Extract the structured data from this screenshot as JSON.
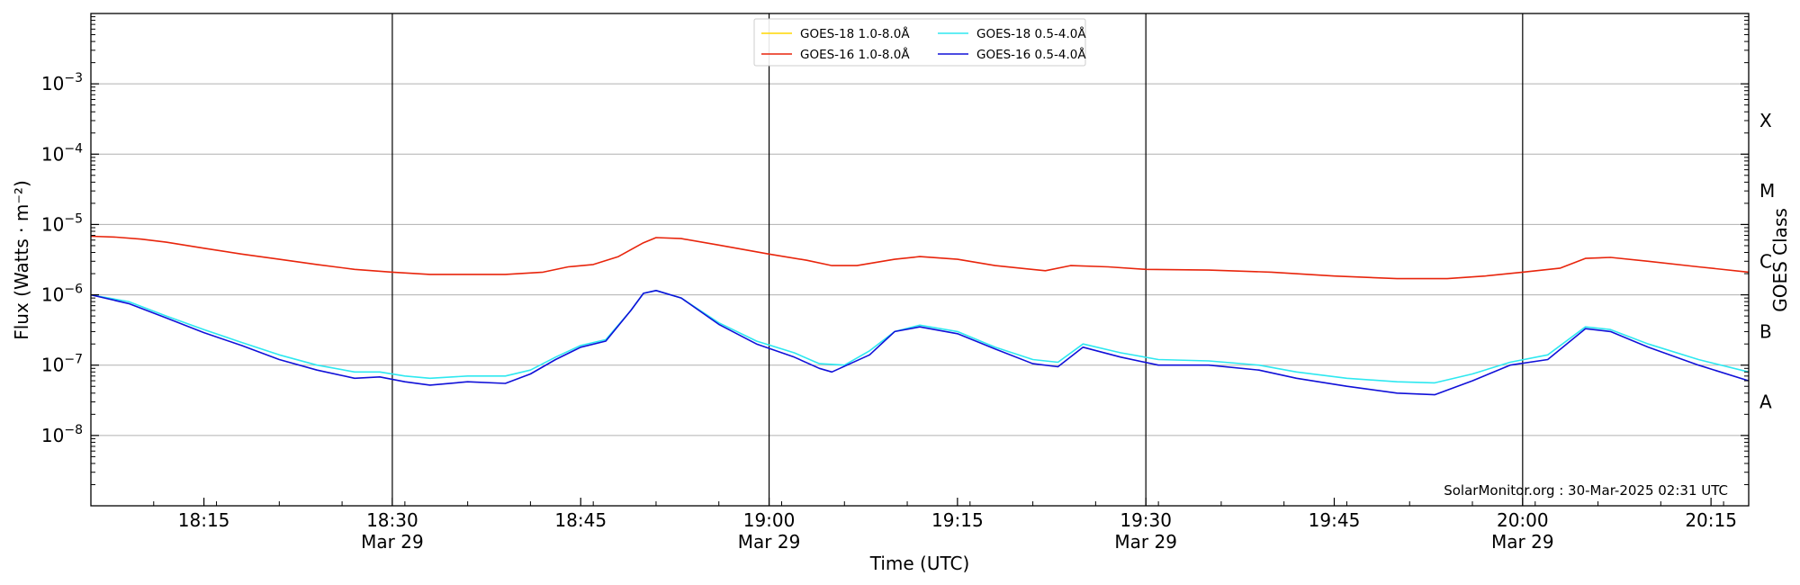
{
  "chart_data": {
    "type": "line",
    "xlabel": "Time (UTC)",
    "ylabel": "Flux (Watts · m⁻²)",
    "ylabel_right": "GOES Class",
    "watermark": "SolarMonitor.org : 30-Mar-2025 02:31 UTC",
    "y_scale": "log",
    "ylim": [
      1e-09,
      0.01
    ],
    "grid": "horizontal",
    "legend_position": "top-center",
    "x_start": "2025-03-29 18:06",
    "x_end": "2025-03-29 20:18",
    "x_ticks": [
      {
        "time": "2025-03-29 18:15",
        "label": "18:15",
        "sublabel": ""
      },
      {
        "time": "2025-03-29 18:30",
        "label": "18:30",
        "sublabel": "Mar 29"
      },
      {
        "time": "2025-03-29 18:45",
        "label": "18:45",
        "sublabel": ""
      },
      {
        "time": "2025-03-29 19:00",
        "label": "19:00",
        "sublabel": "Mar 29"
      },
      {
        "time": "2025-03-29 19:15",
        "label": "19:15",
        "sublabel": ""
      },
      {
        "time": "2025-03-29 19:30",
        "label": "19:30",
        "sublabel": "Mar 29"
      },
      {
        "time": "2025-03-29 19:45",
        "label": "19:45",
        "sublabel": ""
      },
      {
        "time": "2025-03-29 20:00",
        "label": "20:00",
        "sublabel": "Mar 29"
      },
      {
        "time": "2025-03-29 20:15",
        "label": "20:15",
        "sublabel": ""
      }
    ],
    "vlines": [
      "2025-03-29 18:30",
      "2025-03-29 19:00",
      "2025-03-29 19:30",
      "2025-03-29 20:00"
    ],
    "y_ticks": [
      {
        "value": 1e-08,
        "base": "10",
        "exp": "−8"
      },
      {
        "value": 1e-07,
        "base": "10",
        "exp": "−7"
      },
      {
        "value": 1e-06,
        "base": "10",
        "exp": "−6"
      },
      {
        "value": 1e-05,
        "base": "10",
        "exp": "−5"
      },
      {
        "value": 0.0001,
        "base": "10",
        "exp": "−4"
      },
      {
        "value": 0.001,
        "base": "10",
        "exp": "−3"
      }
    ],
    "goes_classes": [
      {
        "label": "A",
        "value": 3e-08
      },
      {
        "label": "B",
        "value": 3e-07
      },
      {
        "label": "C",
        "value": 3e-06
      },
      {
        "label": "M",
        "value": 3e-05
      },
      {
        "label": "X",
        "value": 0.0003
      }
    ],
    "series": [
      {
        "name": "GOES-18 1.0-8.0Å",
        "color": "#ffd700",
        "points": []
      },
      {
        "name": "GOES-16 1.0-8.0Å",
        "color": "#e8250c",
        "points": [
          [
            "2025-03-29 18:06",
            6.8e-06
          ],
          [
            "2025-03-29 18:08",
            6.6e-06
          ],
          [
            "2025-03-29 18:10",
            6.2e-06
          ],
          [
            "2025-03-29 18:12",
            5.6e-06
          ],
          [
            "2025-03-29 18:15",
            4.6e-06
          ],
          [
            "2025-03-29 18:18",
            3.8e-06
          ],
          [
            "2025-03-29 18:21",
            3.2e-06
          ],
          [
            "2025-03-29 18:24",
            2.7e-06
          ],
          [
            "2025-03-29 18:27",
            2.3e-06
          ],
          [
            "2025-03-29 18:30",
            2.1e-06
          ],
          [
            "2025-03-29 18:33",
            1.95e-06
          ],
          [
            "2025-03-29 18:36",
            1.95e-06
          ],
          [
            "2025-03-29 18:39",
            1.95e-06
          ],
          [
            "2025-03-29 18:42",
            2.1e-06
          ],
          [
            "2025-03-29 18:44",
            2.5e-06
          ],
          [
            "2025-03-29 18:46",
            2.7e-06
          ],
          [
            "2025-03-29 18:48",
            3.5e-06
          ],
          [
            "2025-03-29 18:50",
            5.5e-06
          ],
          [
            "2025-03-29 18:51",
            6.5e-06
          ],
          [
            "2025-03-29 18:53",
            6.3e-06
          ],
          [
            "2025-03-29 18:56",
            5.1e-06
          ],
          [
            "2025-03-29 19:00",
            3.8e-06
          ],
          [
            "2025-03-29 19:03",
            3.1e-06
          ],
          [
            "2025-03-29 19:05",
            2.6e-06
          ],
          [
            "2025-03-29 19:07",
            2.6e-06
          ],
          [
            "2025-03-29 19:10",
            3.2e-06
          ],
          [
            "2025-03-29 19:12",
            3.5e-06
          ],
          [
            "2025-03-29 19:15",
            3.2e-06
          ],
          [
            "2025-03-29 19:18",
            2.6e-06
          ],
          [
            "2025-03-29 19:22",
            2.2e-06
          ],
          [
            "2025-03-29 19:24",
            2.6e-06
          ],
          [
            "2025-03-29 19:27",
            2.5e-06
          ],
          [
            "2025-03-29 19:30",
            2.3e-06
          ],
          [
            "2025-03-29 19:35",
            2.25e-06
          ],
          [
            "2025-03-29 19:40",
            2.1e-06
          ],
          [
            "2025-03-29 19:45",
            1.85e-06
          ],
          [
            "2025-03-29 19:50",
            1.7e-06
          ],
          [
            "2025-03-29 19:54",
            1.7e-06
          ],
          [
            "2025-03-29 19:57",
            1.85e-06
          ],
          [
            "2025-03-29 20:00",
            2.1e-06
          ],
          [
            "2025-03-29 20:03",
            2.4e-06
          ],
          [
            "2025-03-29 20:05",
            3.3e-06
          ],
          [
            "2025-03-29 20:07",
            3.4e-06
          ],
          [
            "2025-03-29 20:10",
            3e-06
          ],
          [
            "2025-03-29 20:14",
            2.5e-06
          ],
          [
            "2025-03-29 20:18",
            2.1e-06
          ]
        ]
      },
      {
        "name": "GOES-18 0.5-4.0Å",
        "color": "#2ee8f0",
        "points": [
          [
            "2025-03-29 18:06",
            1e-06
          ],
          [
            "2025-03-29 18:09",
            8e-07
          ],
          [
            "2025-03-29 18:12",
            5e-07
          ],
          [
            "2025-03-29 18:15",
            3.2e-07
          ],
          [
            "2025-03-29 18:18",
            2.1e-07
          ],
          [
            "2025-03-29 18:21",
            1.4e-07
          ],
          [
            "2025-03-29 18:24",
            1e-07
          ],
          [
            "2025-03-29 18:27",
            8e-08
          ],
          [
            "2025-03-29 18:29",
            8e-08
          ],
          [
            "2025-03-29 18:31",
            7e-08
          ],
          [
            "2025-03-29 18:33",
            6.5e-08
          ],
          [
            "2025-03-29 18:36",
            7e-08
          ],
          [
            "2025-03-29 18:39",
            7e-08
          ],
          [
            "2025-03-29 18:41",
            8.5e-08
          ],
          [
            "2025-03-29 18:43",
            1.3e-07
          ],
          [
            "2025-03-29 18:45",
            1.9e-07
          ],
          [
            "2025-03-29 18:47",
            2.3e-07
          ],
          [
            "2025-03-29 18:49",
            6e-07
          ],
          [
            "2025-03-29 18:50",
            1.05e-06
          ],
          [
            "2025-03-29 18:51",
            1.15e-06
          ],
          [
            "2025-03-29 18:53",
            9e-07
          ],
          [
            "2025-03-29 18:56",
            4e-07
          ],
          [
            "2025-03-29 18:59",
            2.2e-07
          ],
          [
            "2025-03-29 19:02",
            1.5e-07
          ],
          [
            "2025-03-29 19:04",
            1.05e-07
          ],
          [
            "2025-03-29 19:06",
            1e-07
          ],
          [
            "2025-03-29 19:08",
            1.6e-07
          ],
          [
            "2025-03-29 19:10",
            3e-07
          ],
          [
            "2025-03-29 19:12",
            3.7e-07
          ],
          [
            "2025-03-29 19:15",
            3e-07
          ],
          [
            "2025-03-29 19:18",
            1.8e-07
          ],
          [
            "2025-03-29 19:21",
            1.2e-07
          ],
          [
            "2025-03-29 19:23",
            1.1e-07
          ],
          [
            "2025-03-29 19:25",
            2e-07
          ],
          [
            "2025-03-29 19:28",
            1.5e-07
          ],
          [
            "2025-03-29 19:31",
            1.2e-07
          ],
          [
            "2025-03-29 19:35",
            1.15e-07
          ],
          [
            "2025-03-29 19:39",
            1e-07
          ],
          [
            "2025-03-29 19:42",
            8e-08
          ],
          [
            "2025-03-29 19:46",
            6.5e-08
          ],
          [
            "2025-03-29 19:50",
            5.8e-08
          ],
          [
            "2025-03-29 19:53",
            5.6e-08
          ],
          [
            "2025-03-29 19:56",
            7.5e-08
          ],
          [
            "2025-03-29 19:59",
            1.1e-07
          ],
          [
            "2025-03-29 20:02",
            1.4e-07
          ],
          [
            "2025-03-29 20:05",
            3.5e-07
          ],
          [
            "2025-03-29 20:07",
            3.2e-07
          ],
          [
            "2025-03-29 20:10",
            2e-07
          ],
          [
            "2025-03-29 20:14",
            1.2e-07
          ],
          [
            "2025-03-29 20:18",
            8e-08
          ]
        ]
      },
      {
        "name": "GOES-16 0.5-4.0Å",
        "color": "#1010d8",
        "points": [
          [
            "2025-03-29 18:06",
            1e-06
          ],
          [
            "2025-03-29 18:09",
            7.5e-07
          ],
          [
            "2025-03-29 18:12",
            4.7e-07
          ],
          [
            "2025-03-29 18:15",
            2.9e-07
          ],
          [
            "2025-03-29 18:18",
            1.9e-07
          ],
          [
            "2025-03-29 18:21",
            1.2e-07
          ],
          [
            "2025-03-29 18:24",
            8.5e-08
          ],
          [
            "2025-03-29 18:27",
            6.5e-08
          ],
          [
            "2025-03-29 18:29",
            6.8e-08
          ],
          [
            "2025-03-29 18:31",
            5.8e-08
          ],
          [
            "2025-03-29 18:33",
            5.2e-08
          ],
          [
            "2025-03-29 18:36",
            5.8e-08
          ],
          [
            "2025-03-29 18:39",
            5.5e-08
          ],
          [
            "2025-03-29 18:41",
            7.5e-08
          ],
          [
            "2025-03-29 18:43",
            1.2e-07
          ],
          [
            "2025-03-29 18:45",
            1.8e-07
          ],
          [
            "2025-03-29 18:47",
            2.2e-07
          ],
          [
            "2025-03-29 18:49",
            6e-07
          ],
          [
            "2025-03-29 18:50",
            1.05e-06
          ],
          [
            "2025-03-29 18:51",
            1.15e-06
          ],
          [
            "2025-03-29 18:53",
            9e-07
          ],
          [
            "2025-03-29 18:56",
            3.8e-07
          ],
          [
            "2025-03-29 18:59",
            2e-07
          ],
          [
            "2025-03-29 19:02",
            1.3e-07
          ],
          [
            "2025-03-29 19:04",
            9e-08
          ],
          [
            "2025-03-29 19:05",
            8e-08
          ],
          [
            "2025-03-29 19:08",
            1.4e-07
          ],
          [
            "2025-03-29 19:10",
            3e-07
          ],
          [
            "2025-03-29 19:12",
            3.5e-07
          ],
          [
            "2025-03-29 19:15",
            2.8e-07
          ],
          [
            "2025-03-29 19:18",
            1.7e-07
          ],
          [
            "2025-03-29 19:21",
            1.05e-07
          ],
          [
            "2025-03-29 19:23",
            9.5e-08
          ],
          [
            "2025-03-29 19:25",
            1.8e-07
          ],
          [
            "2025-03-29 19:28",
            1.3e-07
          ],
          [
            "2025-03-29 19:31",
            1e-07
          ],
          [
            "2025-03-29 19:35",
            1e-07
          ],
          [
            "2025-03-29 19:39",
            8.5e-08
          ],
          [
            "2025-03-29 19:42",
            6.5e-08
          ],
          [
            "2025-03-29 19:46",
            5e-08
          ],
          [
            "2025-03-29 19:50",
            4e-08
          ],
          [
            "2025-03-29 19:53",
            3.8e-08
          ],
          [
            "2025-03-29 19:56",
            6e-08
          ],
          [
            "2025-03-29 19:59",
            1e-07
          ],
          [
            "2025-03-29 20:02",
            1.2e-07
          ],
          [
            "2025-03-29 20:05",
            3.3e-07
          ],
          [
            "2025-03-29 20:07",
            3e-07
          ],
          [
            "2025-03-29 20:10",
            1.8e-07
          ],
          [
            "2025-03-29 20:14",
            1e-07
          ],
          [
            "2025-03-29 20:18",
            6e-08
          ]
        ]
      }
    ]
  }
}
